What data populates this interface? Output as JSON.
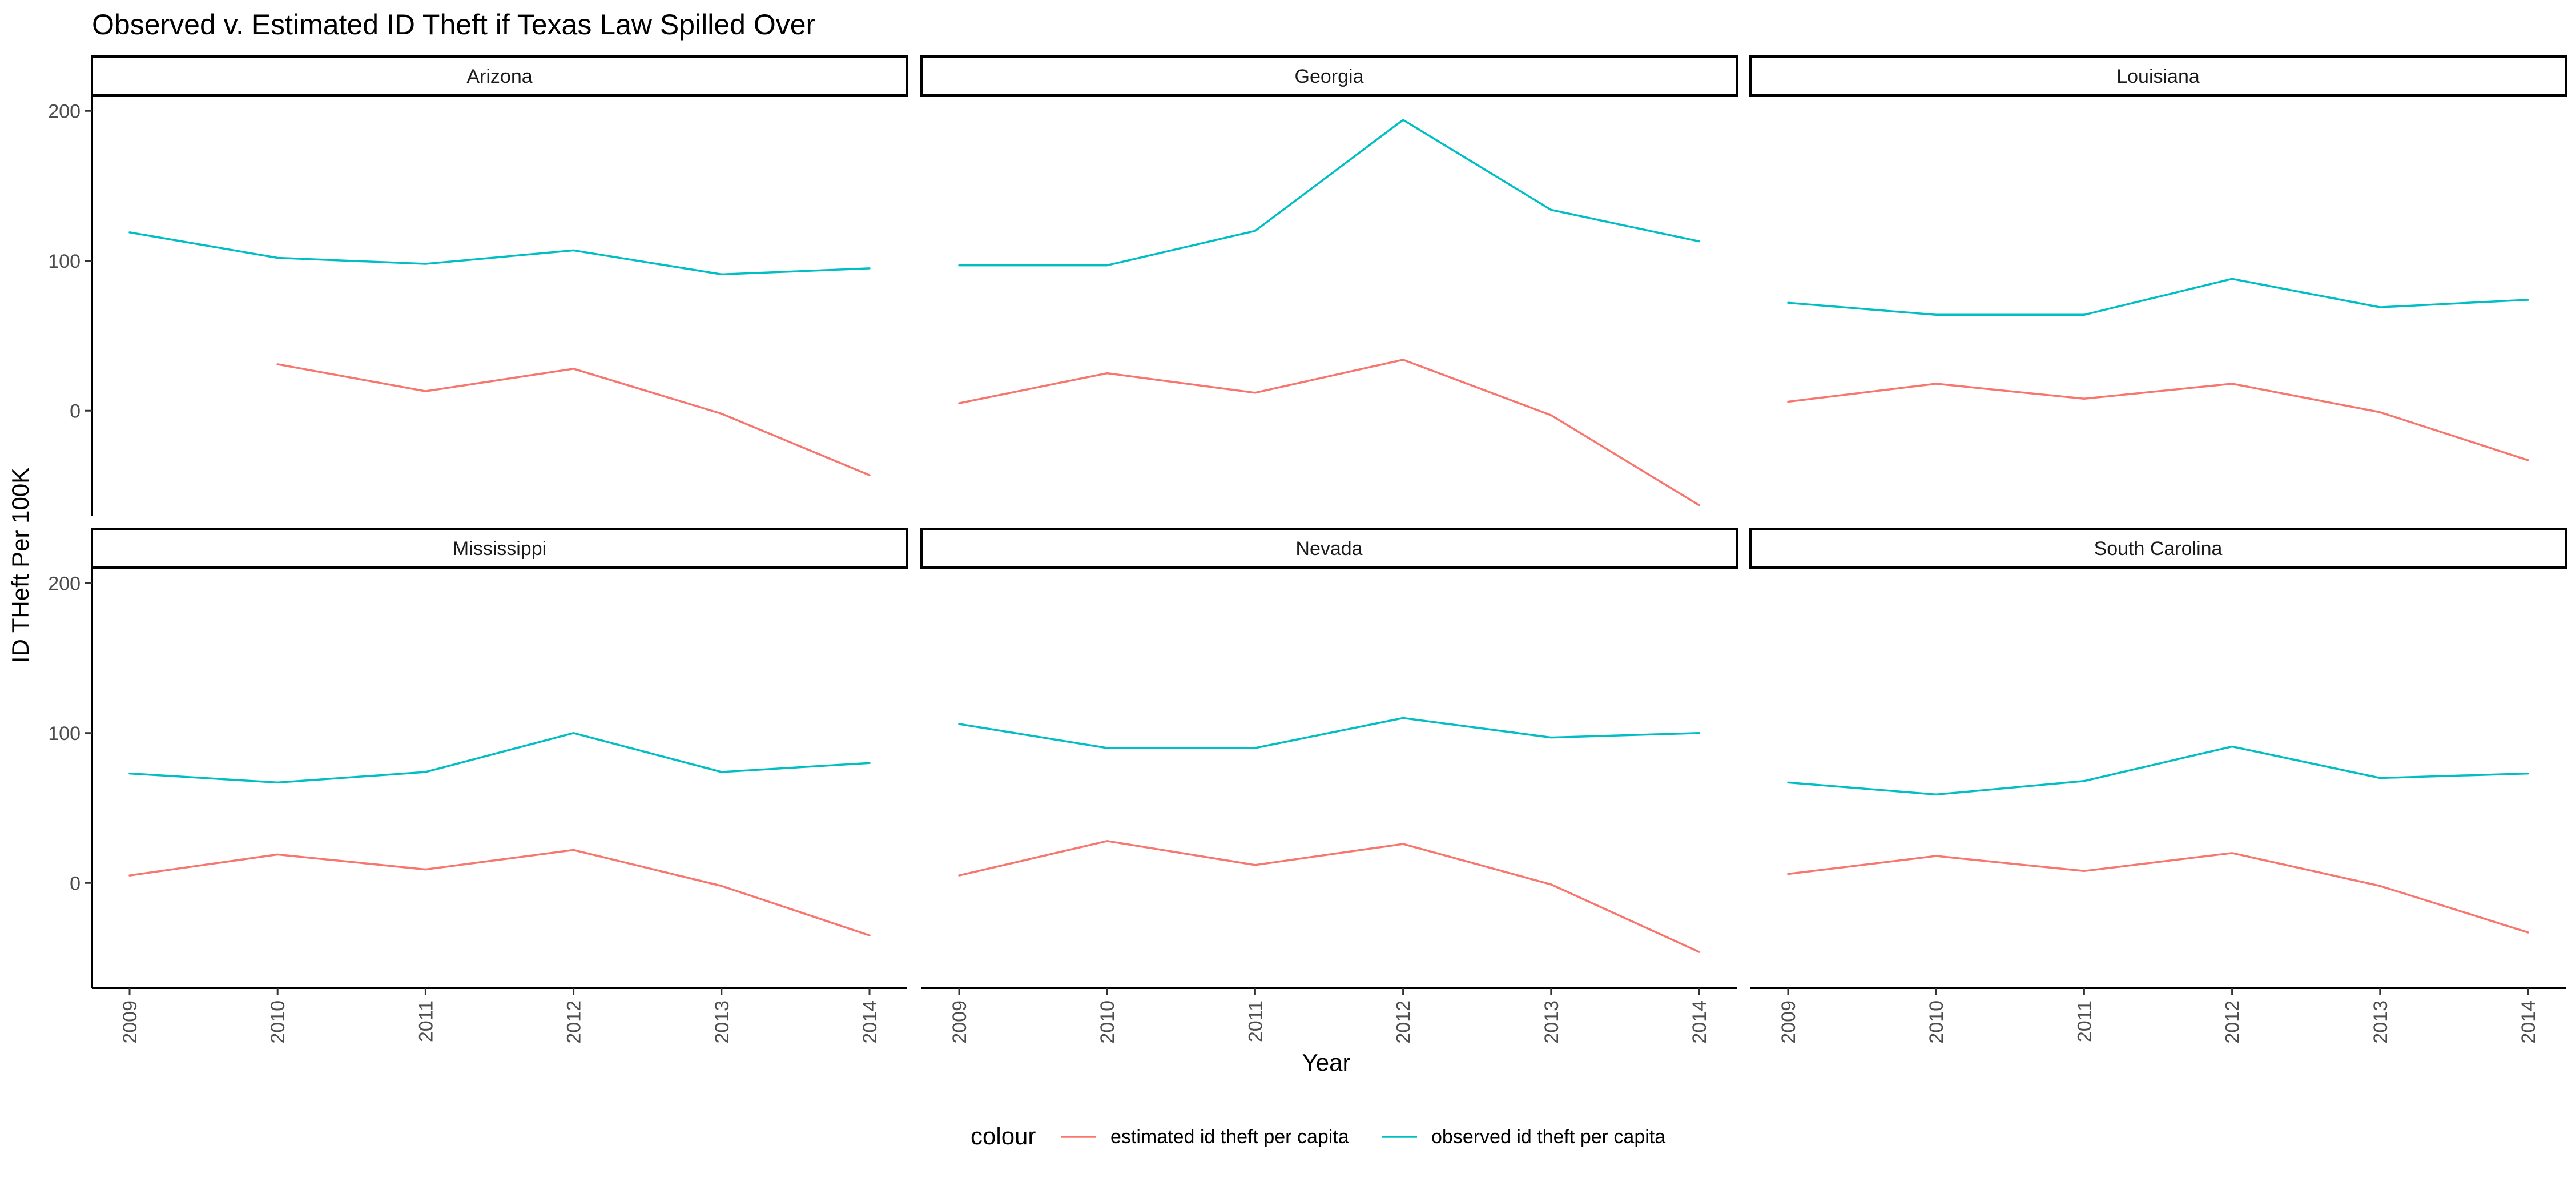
{
  "chart_data": {
    "type": "line",
    "title": "Observed v. Estimated ID Theft if Texas Law Spilled Over",
    "xlabel": "Year",
    "ylabel": "ID THeft Per 100K",
    "ylim": [
      -70,
      210
    ],
    "y_ticks": [
      0,
      100,
      200
    ],
    "x_ticks": [
      "2009",
      "2010",
      "2011",
      "2012",
      "2013",
      "2014"
    ],
    "grid": false,
    "legend": {
      "title": "colour",
      "position": "bottom",
      "entries": [
        "estimated id theft per capita",
        "observed id theft per capita"
      ]
    },
    "colors": {
      "estimated id theft per capita": "#F8766D",
      "observed id theft per capita": "#00BFC4"
    },
    "panels": [
      {
        "name": "Arizona",
        "series": [
          {
            "name": "estimated id theft per capita",
            "x": [
              2010,
              2011,
              2012,
              2013,
              2014
            ],
            "values": [
              31,
              13,
              28,
              -2,
              -43
            ]
          },
          {
            "name": "observed id theft per capita",
            "x": [
              2009,
              2010,
              2011,
              2012,
              2013,
              2014
            ],
            "values": [
              119,
              102,
              98,
              107,
              91,
              95
            ]
          }
        ]
      },
      {
        "name": "Georgia",
        "series": [
          {
            "name": "estimated id theft per capita",
            "x": [
              2009,
              2010,
              2011,
              2012,
              2013,
              2014
            ],
            "values": [
              5,
              25,
              12,
              34,
              -3,
              -63
            ]
          },
          {
            "name": "observed id theft per capita",
            "x": [
              2009,
              2010,
              2011,
              2012,
              2013,
              2014
            ],
            "values": [
              97,
              97,
              120,
              194,
              134,
              113
            ]
          }
        ]
      },
      {
        "name": "Louisiana",
        "series": [
          {
            "name": "estimated id theft per capita",
            "x": [
              2009,
              2010,
              2011,
              2012,
              2013,
              2014
            ],
            "values": [
              6,
              18,
              8,
              18,
              -1,
              -33
            ]
          },
          {
            "name": "observed id theft per capita",
            "x": [
              2009,
              2010,
              2011,
              2012,
              2013,
              2014
            ],
            "values": [
              72,
              64,
              64,
              88,
              69,
              74
            ]
          }
        ]
      },
      {
        "name": "Mississippi",
        "series": [
          {
            "name": "estimated id theft per capita",
            "x": [
              2009,
              2010,
              2011,
              2012,
              2013,
              2014
            ],
            "values": [
              5,
              19,
              9,
              22,
              -2,
              -35
            ]
          },
          {
            "name": "observed id theft per capita",
            "x": [
              2009,
              2010,
              2011,
              2012,
              2013,
              2014
            ],
            "values": [
              73,
              67,
              74,
              100,
              74,
              80
            ]
          }
        ]
      },
      {
        "name": "Nevada",
        "series": [
          {
            "name": "estimated id theft per capita",
            "x": [
              2009,
              2010,
              2011,
              2012,
              2013,
              2014
            ],
            "values": [
              5,
              28,
              12,
              26,
              -1,
              -46
            ]
          },
          {
            "name": "observed id theft per capita",
            "x": [
              2009,
              2010,
              2011,
              2012,
              2013,
              2014
            ],
            "values": [
              106,
              90,
              90,
              110,
              97,
              100
            ]
          }
        ]
      },
      {
        "name": "South Carolina",
        "series": [
          {
            "name": "estimated id theft per capita",
            "x": [
              2009,
              2010,
              2011,
              2012,
              2013,
              2014
            ],
            "values": [
              6,
              18,
              8,
              20,
              -2,
              -33
            ]
          },
          {
            "name": "observed id theft per capita",
            "x": [
              2009,
              2010,
              2011,
              2012,
              2013,
              2014
            ],
            "values": [
              67,
              59,
              68,
              91,
              70,
              73
            ]
          }
        ]
      }
    ]
  }
}
